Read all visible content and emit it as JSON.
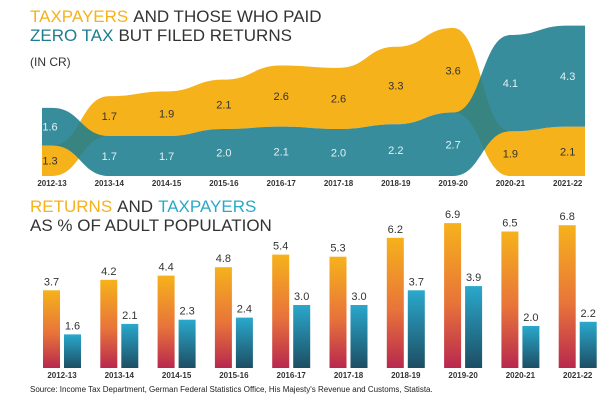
{
  "chart_data": [
    {
      "type": "stream",
      "title": [
        "TAXPAYERS",
        "AND THOSE WHO PAID",
        "ZERO TAX",
        "BUT FILED RETURNS"
      ],
      "subtitle": "(IN CR)",
      "categories": [
        "2012-13",
        "2013-14",
        "2014-15",
        "2015-16",
        "2016-17",
        "2017-18",
        "2018-19",
        "2019-20",
        "2020-21",
        "2021-22"
      ],
      "series": [
        {
          "name": "TAXPAYERS",
          "color": "#f6b21b",
          "values": [
            1.3,
            1.7,
            1.9,
            2.1,
            2.6,
            2.6,
            3.3,
            3.6,
            1.9,
            2.1
          ],
          "value_labels": [
            "1.3",
            "1.7",
            "1.9",
            "2.1",
            "2.6",
            "2.6",
            "3.3",
            "3.6",
            "1.9",
            "2.1"
          ]
        },
        {
          "name": "ZERO TAX",
          "color": "#1d7d90",
          "values": [
            1.6,
            1.7,
            1.7,
            2.0,
            2.1,
            2.0,
            2.2,
            2.7,
            4.1,
            4.3
          ],
          "value_labels": [
            "1.6",
            "1.7",
            "1.7",
            "2.0",
            "2.1",
            "2.0",
            "2.2",
            "2.7",
            "4.1",
            "4.3"
          ]
        }
      ]
    },
    {
      "type": "bar",
      "title": [
        "RETURNS",
        "AND",
        "TAXPAYERS",
        "AS % OF ADULT POPULATION"
      ],
      "categories": [
        "2012-13",
        "2013-14",
        "2014-15",
        "2015-16",
        "2016-17",
        "2017-18",
        "2018-19",
        "2019-20",
        "2020-21",
        "2021-22"
      ],
      "series": [
        {
          "name": "RETURNS",
          "color": "#f6b21b",
          "values": [
            3.7,
            4.2,
            4.4,
            4.8,
            5.4,
            5.3,
            6.2,
            6.9,
            6.5,
            6.8
          ],
          "value_labels": [
            "3.7",
            "4.2",
            "4.4",
            "4.8",
            "5.4",
            "5.3",
            "6.2",
            "6.9",
            "6.5",
            "6.8"
          ]
        },
        {
          "name": "TAXPAYERS",
          "color": "#2aa8cc",
          "values": [
            1.6,
            2.1,
            2.3,
            2.4,
            3.0,
            3.0,
            3.7,
            3.9,
            2.0,
            2.2
          ],
          "value_labels": [
            "1.6",
            "2.1",
            "2.3",
            "2.4",
            "3.0",
            "3.0",
            "3.7",
            "3.9",
            "2.0",
            "2.2"
          ]
        }
      ],
      "source": "Source:  Income Tax Department, German Federal Statistics Office, His Majesty's Revenue and Customs, Statista."
    }
  ]
}
